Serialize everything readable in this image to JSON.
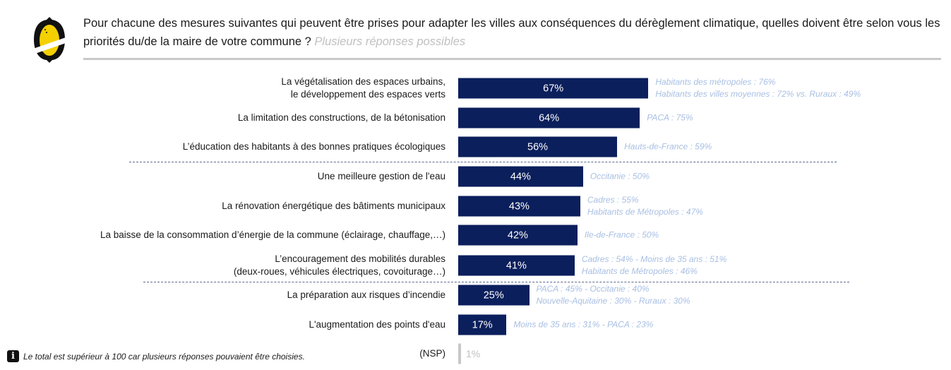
{
  "question": {
    "text": "Pour chacune des mesures suivantes qui peuvent être prises pour adapter les villes aux conséquences du dérèglement climatique, quelles doivent être selon vous les priorités du/de la maire de votre commune ?",
    "hint": "Plusieurs réponses possibles"
  },
  "footer_note": "Le total est supérieur à 100 car plusieurs réponses pouvaient être choisies.",
  "colors": {
    "bar": "#0b1f5c",
    "nsp_bar": "#c8c8c8",
    "note": "#a8bfe3",
    "logo_yellow": "#f5d000"
  },
  "chart_data": {
    "type": "bar",
    "orientation": "horizontal",
    "unit": "%",
    "xlim": [
      0,
      100
    ],
    "categories": [
      [
        "La végétalisation des espaces urbains,",
        "le développement des espaces verts"
      ],
      [
        "La limitation des constructions, de la bétonisation"
      ],
      [
        "L’éducation des habitants à des bonnes pratiques écologiques"
      ],
      [
        "Une meilleure gestion de l'eau"
      ],
      [
        "La rénovation énergétique des bâtiments municipaux"
      ],
      [
        "La baisse de la consommation d’énergie de la commune (éclairage, chauffage,…)"
      ],
      [
        "L’encouragement des mobilités durables",
        "(deux-roues, véhicules électriques, covoiturage…)"
      ],
      [
        "La préparation aux risques d’incendie"
      ],
      [
        "L'augmentation des points d'eau"
      ],
      [
        "(NSP)"
      ]
    ],
    "values": [
      67,
      64,
      56,
      44,
      43,
      42,
      41,
      25,
      17,
      1
    ],
    "data_labels": [
      "67%",
      "64%",
      "56%",
      "44%",
      "43%",
      "42%",
      "41%",
      "25%",
      "17%",
      "1%"
    ],
    "annotations": [
      [
        "Habitants des métropoles : 76%",
        "Habitants des villes moyennes : 72% vs. Ruraux : 49%"
      ],
      [
        "PACA : 75%"
      ],
      [
        "Hauts-de-France : 59%"
      ],
      [
        "Occitanie : 50%"
      ],
      [
        "Cadres : 55%",
        "Habitants de Métropoles : 47%"
      ],
      [
        "Ile-de-France : 50%"
      ],
      [
        "Cadres : 54% - Moins de 35 ans : 51%",
        "Habitants de Métropoles : 46%"
      ],
      [
        "PACA : 45% - Occitanie : 40%",
        "Nouvelle-Aquitaine : 30% - Ruraux : 30%"
      ],
      [
        "Moins de 35 ans : 31% - PACA : 23%"
      ],
      []
    ],
    "group_separators_after": [
      2,
      6
    ]
  }
}
